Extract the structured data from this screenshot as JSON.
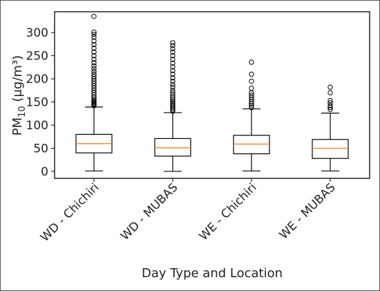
{
  "chart_data": {
    "type": "boxplot",
    "categories": [
      "WD - Chichiri",
      "WD - MUBAS",
      "WE - Chichiri",
      "WE - MUBAS"
    ],
    "xlabel": "Day Type and Location",
    "ylabel": {
      "base": "PM",
      "subscript": "10",
      "rest": " (μg/m³)"
    },
    "ylim": [
      -15,
      345
    ],
    "yticks": [
      0,
      50,
      100,
      150,
      200,
      250,
      300
    ],
    "grid": false,
    "legend": "none",
    "colors": {
      "box": "#000000",
      "median": "#ff7f0e",
      "frame": "#000000"
    },
    "boxes": [
      {
        "category": "WD - Chichiri",
        "whisker_low": 1,
        "q1": 40,
        "median": 60,
        "q3": 80,
        "whisker_high": 139,
        "outliers": [
          142,
          144,
          146,
          148,
          150,
          153,
          156,
          160,
          165,
          170,
          175,
          180,
          185,
          190,
          195,
          200,
          205,
          210,
          216,
          222,
          228,
          235,
          242,
          250,
          258,
          266,
          274,
          282,
          290,
          296,
          301,
          335
        ]
      },
      {
        "category": "WD - MUBAS",
        "whisker_low": 0,
        "q1": 33,
        "median": 51,
        "q3": 71,
        "whisker_high": 127,
        "outliers": [
          130,
          133,
          136,
          139,
          142,
          145,
          148,
          152,
          156,
          160,
          165,
          170,
          175,
          182,
          188,
          195,
          202,
          210,
          218,
          226,
          234,
          242,
          250,
          258,
          265,
          272,
          278
        ]
      },
      {
        "category": "WE - Chichiri",
        "whisker_low": 1,
        "q1": 38,
        "median": 59,
        "q3": 78,
        "whisker_high": 135,
        "outliers": [
          138,
          142,
          146,
          150,
          155,
          160,
          165,
          170,
          180,
          195,
          210,
          236
        ]
      },
      {
        "category": "WE - MUBAS",
        "whisker_low": 1,
        "q1": 28,
        "median": 50,
        "q3": 69,
        "whisker_high": 126,
        "outliers": [
          134,
          138,
          142,
          148,
          153,
          170,
          182
        ]
      }
    ]
  }
}
